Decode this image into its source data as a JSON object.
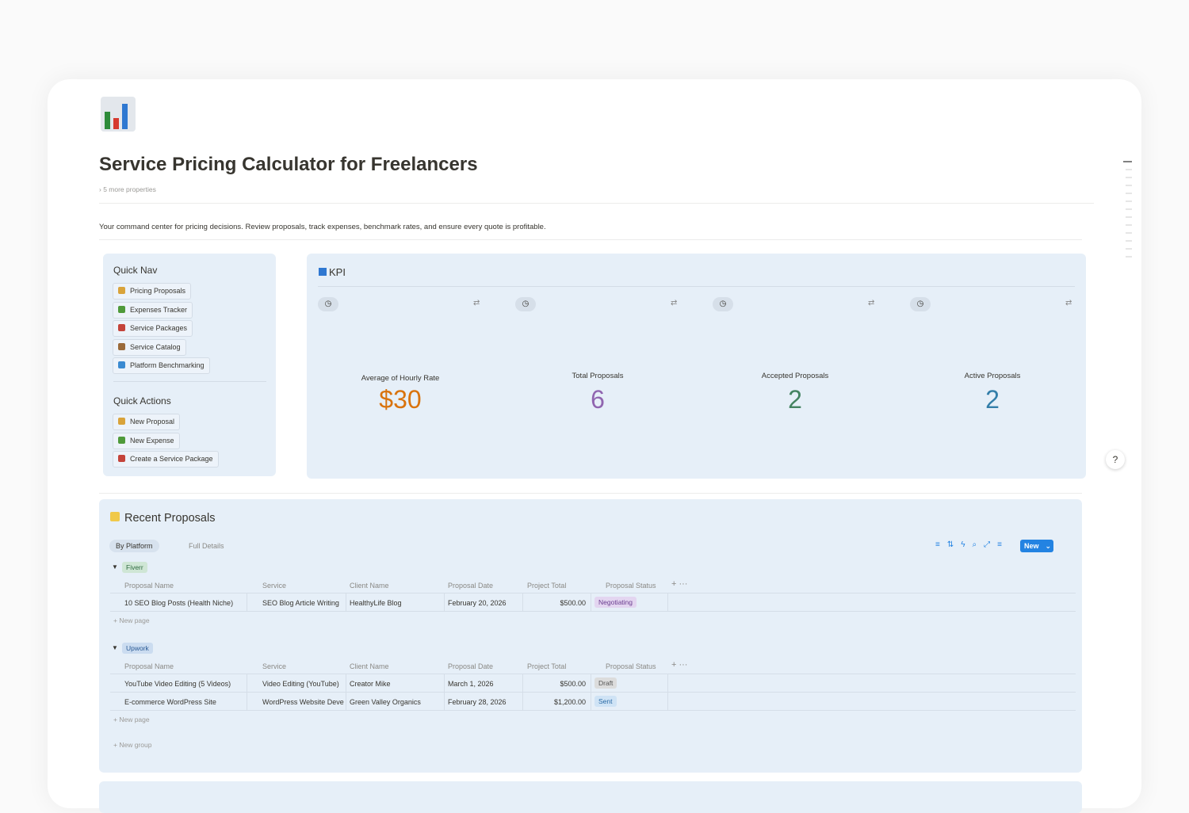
{
  "page": {
    "title": "Service Pricing Calculator for Freelancers",
    "properties_toggle": "5 more properties",
    "description": "Your command center for pricing decisions. Review proposals, track expenses, benchmark rates, and ensure every quote is profitable."
  },
  "quick_nav": {
    "title": "Quick Nav",
    "links": [
      "Pricing Proposals",
      "Expenses Tracker",
      "Service Packages",
      "Service Catalog",
      "Platform Benchmarking"
    ]
  },
  "quick_actions": {
    "title": "Quick Actions",
    "buttons": [
      "New Proposal",
      "New Expense",
      "Create a Service Package"
    ]
  },
  "kpi": {
    "title": "KPI",
    "cards": [
      {
        "label": "Average of Hourly Rate",
        "value": "$30"
      },
      {
        "label": "Total Proposals",
        "value": "6"
      },
      {
        "label": "Accepted Proposals",
        "value": "2"
      },
      {
        "label": "Active Proposals",
        "value": "2"
      }
    ]
  },
  "proposals": {
    "title": "Recent Proposals",
    "views": [
      "By Platform",
      "Full Details"
    ],
    "new_button": "New",
    "columns": [
      "Proposal Name",
      "Service",
      "Client Name",
      "Proposal Date",
      "Project Total",
      "Proposal Status"
    ],
    "groups": [
      {
        "name": "Fiverr",
        "rows": [
          [
            "10 SEO Blog Posts (Health Niche)",
            "SEO Blog Article Writing",
            "HealthyLife Blog",
            "February 20, 2026",
            "$500.00",
            "Negotiating"
          ]
        ],
        "new_page": "New page"
      },
      {
        "name": "Upwork",
        "rows": [
          [
            "YouTube Video Editing (5 Videos)",
            "Video Editing (YouTube)",
            "Creator Mike",
            "March 1, 2026",
            "$500.00",
            "Draft"
          ],
          [
            "E-commerce WordPress Site",
            "WordPress Website Develo",
            "Green Valley Organics",
            "February 28, 2026",
            "$1,200.00",
            "Sent"
          ]
        ],
        "new_page": "New page"
      }
    ],
    "new_group": "New group"
  }
}
